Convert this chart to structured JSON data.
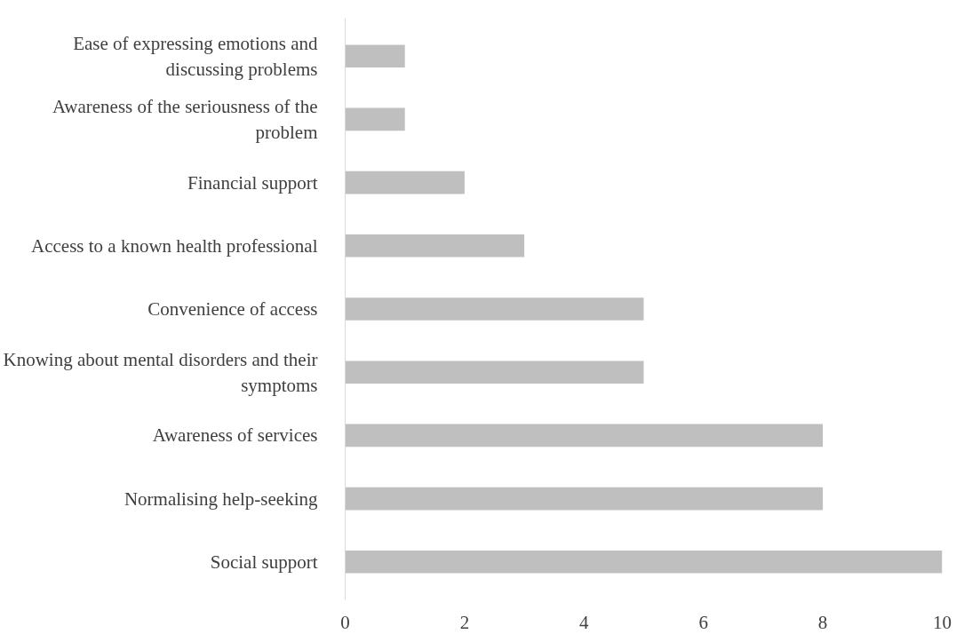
{
  "chart_data": {
    "type": "bar",
    "orientation": "horizontal",
    "categories": [
      "Ease of expressing emotions and discussing problems",
      "Awareness of the seriousness of the problem",
      "Financial support",
      "Access to a known health professional",
      "Convenience of access",
      "Knowing about mental disorders and their symptoms",
      "Awareness of services",
      "Normalising help-seeking",
      "Social support"
    ],
    "values": [
      1,
      1,
      2,
      3,
      5,
      5,
      8,
      8,
      10
    ],
    "color": "#bfbfbf",
    "xlim": [
      0,
      10
    ],
    "xticks": [
      0,
      2,
      4,
      6,
      8,
      10
    ],
    "grid": false
  }
}
